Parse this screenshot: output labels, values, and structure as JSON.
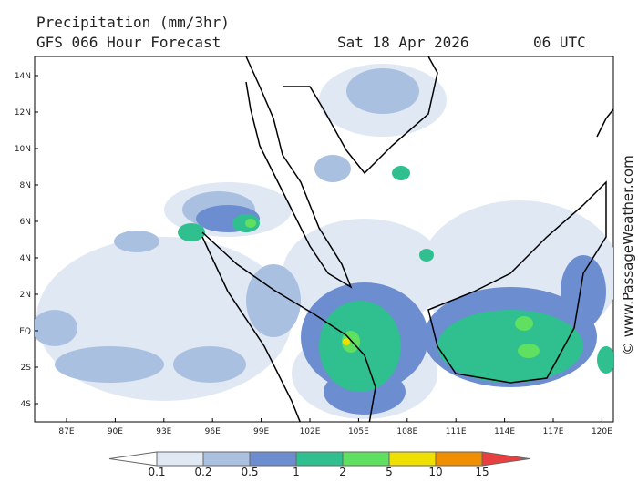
{
  "header": {
    "title": "Precipitation (mm/3hr)",
    "model": "GFS 066 Hour Forecast",
    "date": "Sat 18 Apr 2026",
    "time": "06 UTC"
  },
  "map": {
    "lat_labels": [
      "14N",
      "12N",
      "10N",
      "8N",
      "6N",
      "4N",
      "2N",
      "EQ",
      "2S",
      "4S"
    ],
    "lon_labels": [
      "87E",
      "90E",
      "93E",
      "96E",
      "99E",
      "102E",
      "105E",
      "108E",
      "111E",
      "114E",
      "117E",
      "120E"
    ]
  },
  "legend": {
    "levels": [
      0.1,
      0.2,
      0.5,
      1,
      2,
      5,
      10,
      15
    ]
  },
  "watermark": "© www.PassageWeather.com"
}
